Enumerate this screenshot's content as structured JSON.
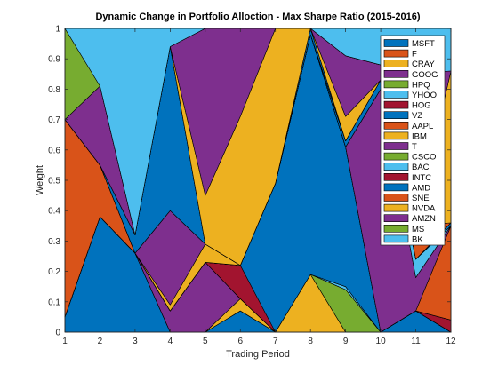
{
  "chart_data": {
    "type": "area",
    "title": "Dynamic Change in Portfolio Alloction - Max Sharpe Ratio (2015-2016)",
    "xlabel": "Trading Period",
    "ylabel": "Weight",
    "x": [
      1,
      2,
      3,
      4,
      5,
      6,
      7,
      8,
      9,
      10,
      11,
      12
    ],
    "xlim": [
      1,
      12
    ],
    "ylim": [
      0,
      1
    ],
    "yticks": [
      0,
      0.1,
      0.2,
      0.3,
      0.4,
      0.5,
      0.6,
      0.7,
      0.8,
      0.9,
      1
    ],
    "xticks": [
      1,
      2,
      3,
      4,
      5,
      6,
      7,
      8,
      9,
      10,
      11,
      12
    ],
    "stacked": true,
    "grid": false,
    "legend_position": "top-right",
    "series": [
      {
        "name": "MSFT",
        "color": "#0072BD",
        "values": [
          0.05,
          0.38,
          0.26,
          0.0,
          0.0,
          0.07,
          0.0,
          0.0,
          0.0,
          0.0,
          0.07,
          0.0
        ]
      },
      {
        "name": "F",
        "color": "#D95319",
        "values": [
          0.0,
          0.0,
          0.0,
          0.0,
          0.0,
          0.0,
          0.0,
          0.0,
          0.0,
          0.0,
          0.0,
          0.0
        ]
      },
      {
        "name": "CRAY",
        "color": "#EDB120",
        "values": [
          0.0,
          0.0,
          0.0,
          0.0,
          0.0,
          0.04,
          0.0,
          0.19,
          0.0,
          0.0,
          0.0,
          0.0
        ]
      },
      {
        "name": "GOOG",
        "color": "#7E2F8E",
        "values": [
          0.0,
          0.0,
          0.0,
          0.07,
          0.23,
          0.0,
          0.0,
          0.0,
          0.0,
          0.0,
          0.0,
          0.0
        ]
      },
      {
        "name": "HPQ",
        "color": "#77AC30",
        "values": [
          0.0,
          0.0,
          0.0,
          0.0,
          0.0,
          0.0,
          0.0,
          0.0,
          0.14,
          0.0,
          0.0,
          0.0
        ]
      },
      {
        "name": "YHOO",
        "color": "#4DBEEE",
        "values": [
          0.0,
          0.0,
          0.0,
          0.0,
          0.0,
          0.0,
          0.0,
          0.0,
          0.01,
          0.0,
          0.0,
          0.0
        ]
      },
      {
        "name": "HOG",
        "color": "#A2142F",
        "values": [
          0.0,
          0.0,
          0.0,
          0.0,
          0.0,
          0.11,
          0.0,
          0.0,
          0.0,
          0.0,
          0.0,
          0.04
        ]
      },
      {
        "name": "VZ",
        "color": "#0072BD",
        "values": [
          0.0,
          0.0,
          0.0,
          0.0,
          0.0,
          0.0,
          0.49,
          0.79,
          0.46,
          0.0,
          0.0,
          0.0
        ]
      },
      {
        "name": "AAPL",
        "color": "#D95319",
        "values": [
          0.0,
          0.0,
          0.0,
          0.0,
          0.0,
          0.0,
          0.0,
          0.0,
          0.0,
          0.0,
          0.0,
          0.31
        ]
      },
      {
        "name": "IBM",
        "color": "#EDB120",
        "values": [
          0.0,
          0.0,
          0.0,
          0.0,
          0.0,
          0.0,
          0.0,
          0.0,
          0.0,
          0.0,
          0.0,
          0.0
        ]
      },
      {
        "name": "T",
        "color": "#7E2F8E",
        "values": [
          0.0,
          0.0,
          0.0,
          0.0,
          0.0,
          0.0,
          0.0,
          0.0,
          0.0,
          0.8,
          0.11,
          0.0
        ]
      },
      {
        "name": "CSCO",
        "color": "#77AC30",
        "values": [
          0.0,
          0.0,
          0.0,
          0.0,
          0.0,
          0.0,
          0.0,
          0.0,
          0.0,
          0.0,
          0.0,
          0.0
        ]
      },
      {
        "name": "BAC",
        "color": "#4DBEEE",
        "values": [
          0.0,
          0.0,
          0.0,
          0.0,
          0.0,
          0.0,
          0.0,
          0.0,
          0.0,
          0.0,
          0.06,
          0.0
        ]
      },
      {
        "name": "INTC",
        "color": "#A2142F",
        "values": [
          0.0,
          0.0,
          0.0,
          0.0,
          0.0,
          0.0,
          0.0,
          0.0,
          0.0,
          0.0,
          0.0,
          0.0
        ]
      },
      {
        "name": "AMD",
        "color": "#0072BD",
        "values": [
          0.0,
          0.0,
          0.0,
          0.0,
          0.0,
          0.0,
          0.0,
          0.0,
          0.02,
          0.03,
          0.0,
          0.01
        ]
      },
      {
        "name": "SNE",
        "color": "#D95319",
        "values": [
          0.65,
          0.17,
          0.0,
          0.0,
          0.0,
          0.0,
          0.0,
          0.0,
          0.0,
          0.0,
          0.11,
          0.0
        ]
      },
      {
        "name": "NVDA",
        "color": "#EDB120",
        "values": [
          0.0,
          0.0,
          0.0,
          0.02,
          0.06,
          0.0,
          0.0,
          0.0,
          0.0,
          0.0,
          0.0,
          0.0
        ]
      },
      {
        "name": "AMZN",
        "color": "#7E2F8E",
        "values": [
          0.0,
          0.0,
          0.0,
          0.31,
          0.0,
          0.0,
          0.0,
          0.0,
          0.0,
          0.0,
          0.0,
          0.0
        ]
      },
      {
        "name": "MS",
        "color": "#77AC30",
        "values": [
          0.0,
          0.0,
          0.0,
          0.0,
          0.0,
          0.0,
          0.0,
          0.0,
          0.0,
          0.0,
          0.0,
          0.0
        ]
      },
      {
        "name": "BK",
        "color": "#4DBEEE",
        "values": [
          0.0,
          0.0,
          0.0,
          0.0,
          0.0,
          0.0,
          0.0,
          0.0,
          0.0,
          0.0,
          0.0,
          0.0
        ]
      },
      {
        "name": "",
        "color": "#0072BD",
        "values": [
          0.0,
          0.0,
          0.06,
          0.54,
          0.0,
          0.0,
          0.0,
          0.02,
          0.0,
          0.0,
          0.0,
          0.0
        ]
      },
      {
        "name": "",
        "color": "#D95319",
        "values": [
          0.0,
          0.0,
          0.0,
          0.0,
          0.0,
          0.0,
          0.0,
          0.0,
          0.0,
          0.0,
          0.0,
          0.0
        ]
      },
      {
        "name": "",
        "color": "#EDB120",
        "values": [
          0.0,
          0.0,
          0.0,
          0.0,
          0.16,
          0.49,
          0.51,
          0.0,
          0.08,
          0.0,
          0.0,
          0.5
        ]
      },
      {
        "name": "",
        "color": "#7E2F8E",
        "values": [
          0.0,
          0.26,
          0.0,
          0.0,
          0.55,
          0.29,
          0.0,
          0.0,
          0.2,
          0.05,
          0.5,
          0.0
        ]
      },
      {
        "name": "",
        "color": "#77AC30",
        "values": [
          0.3,
          0.0,
          0.0,
          0.0,
          0.0,
          0.0,
          0.0,
          0.0,
          0.0,
          0.0,
          0.0,
          0.0
        ]
      },
      {
        "name": "",
        "color": "#4DBEEE",
        "values": [
          0.0,
          0.19,
          0.68,
          0.06,
          0.0,
          0.0,
          0.0,
          0.0,
          0.09,
          0.12,
          0.15,
          0.14
        ]
      }
    ]
  }
}
